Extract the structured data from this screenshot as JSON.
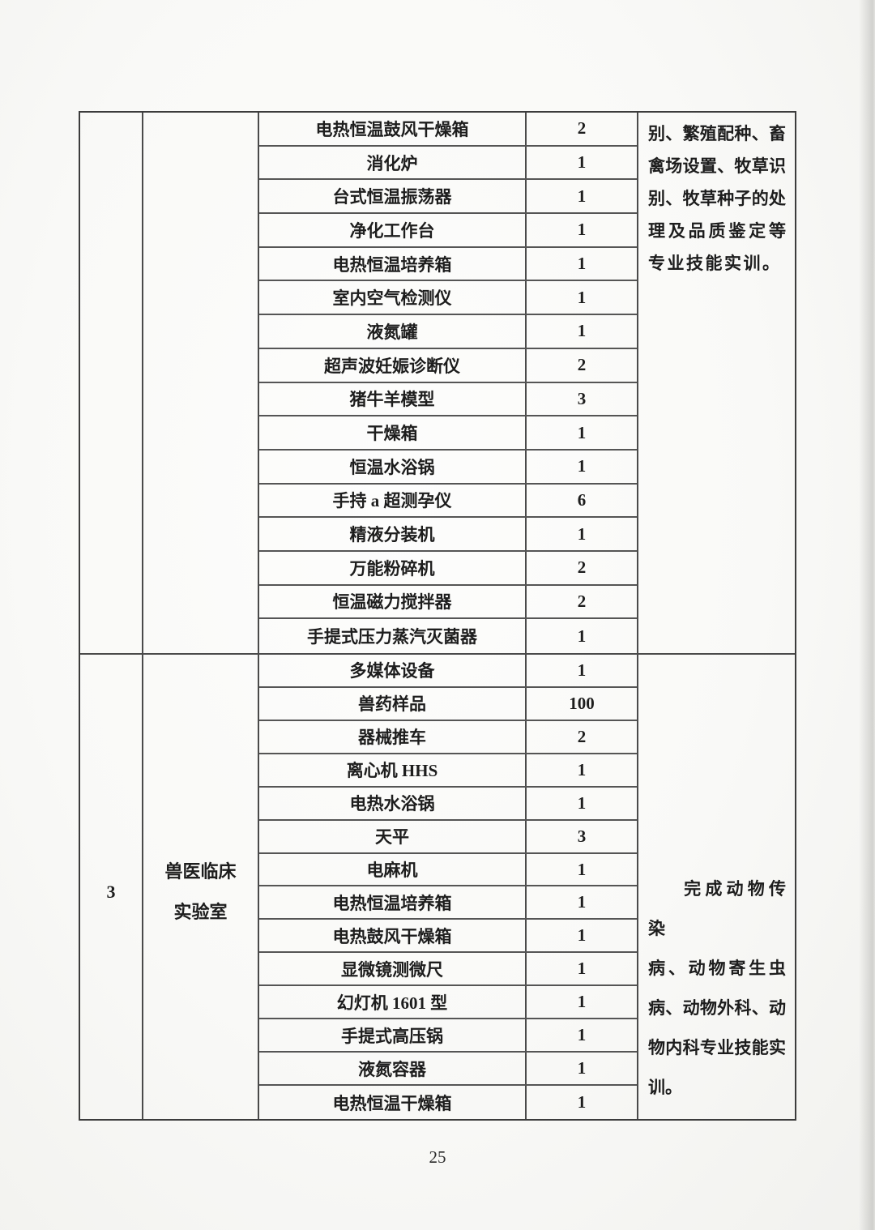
{
  "page_number": "25",
  "colors": {
    "ink": "#1d1d1d",
    "table_border": "#3c3c3c",
    "grid_line": "#4a4a4a",
    "paper": "#f9f9f7"
  },
  "table": {
    "sections": [
      {
        "row_no": "",
        "lab_name_lines": [
          "",
          ""
        ],
        "items": [
          {
            "name": "电热恒温鼓风干燥箱",
            "qty": "2"
          },
          {
            "name": "消化炉",
            "qty": "1"
          },
          {
            "name": "台式恒温振荡器",
            "qty": "1"
          },
          {
            "name": "净化工作台",
            "qty": "1"
          },
          {
            "name": "电热恒温培养箱",
            "qty": "1"
          },
          {
            "name": "室内空气检测仪",
            "qty": "1"
          },
          {
            "name": "液氮罐",
            "qty": "1"
          },
          {
            "name": "超声波妊娠诊断仪",
            "qty": "2"
          },
          {
            "name": "猪牛羊模型",
            "qty": "3"
          },
          {
            "name": "干燥箱",
            "qty": "1"
          },
          {
            "name": "恒温水浴锅",
            "qty": "1"
          },
          {
            "name": "手持 a 超测孕仪",
            "qty": "6"
          },
          {
            "name": "精液分装机",
            "qty": "1"
          },
          {
            "name": "万能粉碎机",
            "qty": "2"
          },
          {
            "name": "恒温磁力搅拌器",
            "qty": "2"
          },
          {
            "name": "手提式压力蒸汽灭菌器",
            "qty": "1"
          }
        ],
        "note_lines": [
          "别、繁殖配种、畜",
          "禽场设置、牧草识",
          "别、牧草种子的处",
          "理及品质鉴定等",
          "专业技能实训。"
        ]
      },
      {
        "row_no": "3",
        "lab_name_lines": [
          "兽医临床",
          "实验室"
        ],
        "items": [
          {
            "name": "多媒体设备",
            "qty": "1"
          },
          {
            "name": "兽药样品",
            "qty": "100"
          },
          {
            "name": "器械推车",
            "qty": "2"
          },
          {
            "name": "离心机 HHS",
            "qty": "1"
          },
          {
            "name": "电热水浴锅",
            "qty": "1"
          },
          {
            "name": "天平",
            "qty": "3"
          },
          {
            "name": "电麻机",
            "qty": "1"
          },
          {
            "name": "电热恒温培养箱",
            "qty": "1"
          },
          {
            "name": "电热鼓风干燥箱",
            "qty": "1"
          },
          {
            "name": "显微镜测微尺",
            "qty": "1"
          },
          {
            "name": "幻灯机 1601 型",
            "qty": "1"
          },
          {
            "name": "手提式高压锅",
            "qty": "1"
          },
          {
            "name": "液氮容器",
            "qty": "1"
          },
          {
            "name": "电热恒温干燥箱",
            "qty": "1"
          }
        ],
        "note_lines": [
          "完成动物传染",
          "病、动物寄生虫",
          "病、动物外科、动",
          "物内科专业技能实",
          "训。"
        ]
      }
    ]
  }
}
